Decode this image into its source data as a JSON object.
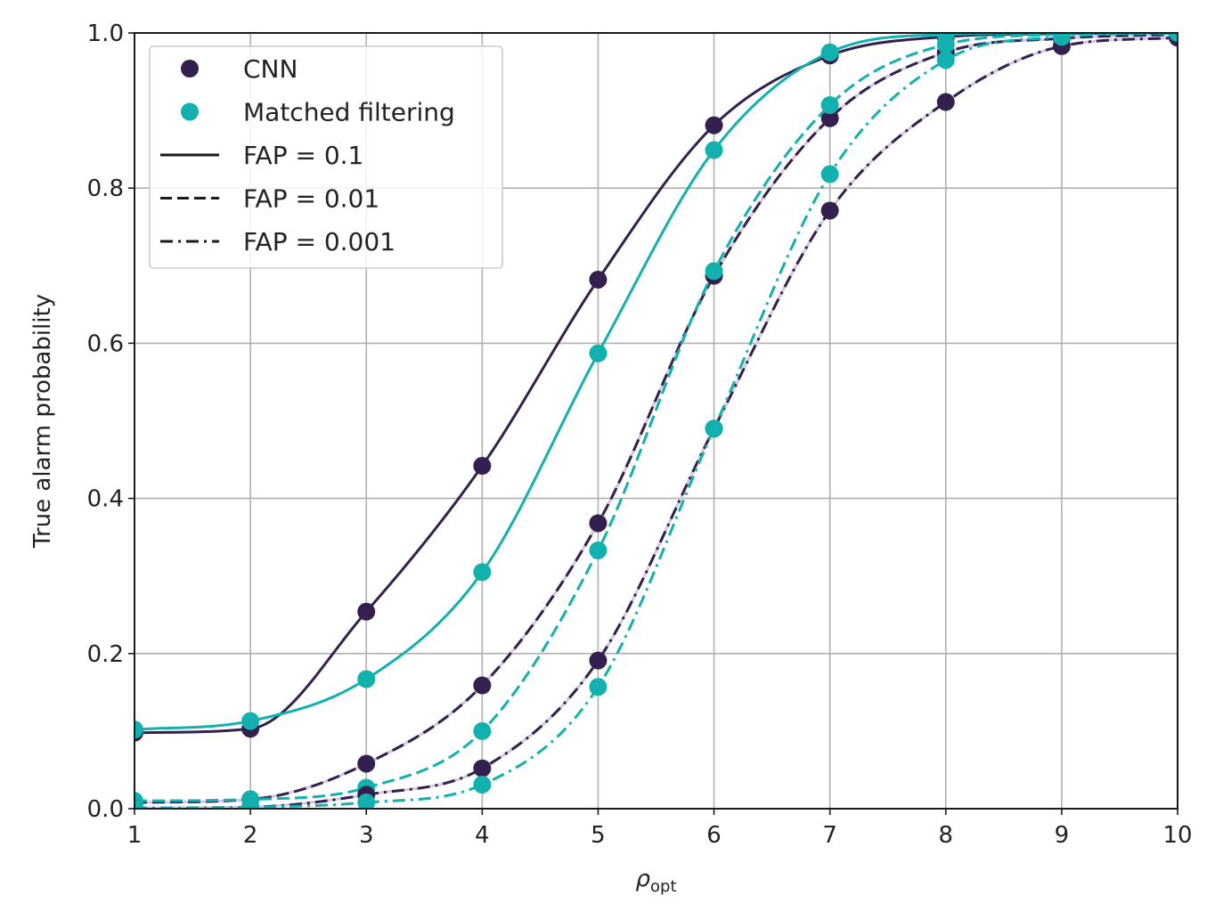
{
  "chart_data": {
    "type": "line",
    "title": "",
    "xlabel_symbol": "ρ",
    "xlabel_subscript": "opt",
    "ylabel": "True alarm probability",
    "xlim": [
      1,
      10
    ],
    "ylim": [
      0.0,
      1.0
    ],
    "x_ticks": [
      "1",
      "2",
      "3",
      "4",
      "5",
      "6",
      "7",
      "8",
      "9",
      "10"
    ],
    "y_ticks": [
      "0.0",
      "0.2",
      "0.4",
      "0.6",
      "0.8",
      "1.0"
    ],
    "grid": true,
    "legend_position": "top-left",
    "colors": {
      "cnn": "#34204f",
      "mf": "#13b1ae",
      "legend_line": "#1a1a1a",
      "cnn_highlight": "#d6c8e0"
    },
    "legend": [
      {
        "label": "CNN",
        "kind": "marker",
        "color": "cnn"
      },
      {
        "label": "Matched filtering",
        "kind": "marker",
        "color": "mf"
      },
      {
        "label": "FAP = 0.1",
        "kind": "line",
        "style": "solid"
      },
      {
        "label": "FAP = 0.01",
        "kind": "line",
        "style": "dashed"
      },
      {
        "label": "FAP = 0.001",
        "kind": "line",
        "style": "dashdot"
      }
    ],
    "x": [
      1,
      2,
      3,
      4,
      5,
      6,
      7,
      8,
      9,
      10
    ],
    "series": [
      {
        "method": "CNN",
        "fap": "0.1",
        "style": "solid",
        "color": "cnn",
        "values": [
          0.098,
          0.103,
          0.254,
          0.442,
          0.682,
          0.881,
          0.971,
          0.995,
          0.999,
          1.0
        ]
      },
      {
        "method": "Matched filtering",
        "fap": "0.1",
        "style": "solid",
        "color": "mf",
        "values": [
          0.102,
          0.113,
          0.167,
          0.305,
          0.587,
          0.849,
          0.975,
          0.998,
          1.0,
          1.0
        ]
      },
      {
        "method": "CNN",
        "fap": "0.01",
        "style": "dashed",
        "color": "cnn",
        "values": [
          0.008,
          0.012,
          0.058,
          0.159,
          0.368,
          0.687,
          0.89,
          0.975,
          0.993,
          0.998
        ]
      },
      {
        "method": "Matched filtering",
        "fap": "0.01",
        "style": "dashed",
        "color": "mf",
        "values": [
          0.01,
          0.012,
          0.027,
          0.1,
          0.333,
          0.693,
          0.907,
          0.985,
          0.998,
          1.0
        ]
      },
      {
        "method": "CNN",
        "fap": "0.001",
        "style": "dashdot",
        "color": "cnn",
        "values": [
          0.001,
          0.002,
          0.018,
          0.052,
          0.191,
          0.49,
          0.771,
          0.911,
          0.983,
          0.994
        ]
      },
      {
        "method": "Matched filtering",
        "fap": "0.001",
        "style": "dashdot",
        "color": "mf",
        "values": [
          0.001,
          0.002,
          0.008,
          0.031,
          0.157,
          0.49,
          0.818,
          0.965,
          0.995,
          1.0
        ]
      }
    ]
  }
}
